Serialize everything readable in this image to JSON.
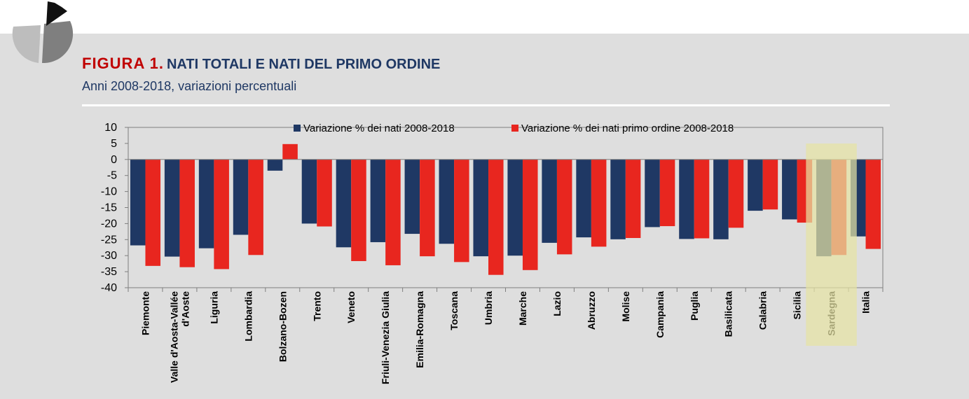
{
  "header": {
    "figure_label": "FIGURA 1.",
    "title": "NATI TOTALI E NATI DEL PRIMO ORDINE",
    "subtitle": "Anni 2008-2018, variazioni percentuali"
  },
  "logo_icon": "pie-chart-icon",
  "colors": {
    "series_total": "#1f3864",
    "series_first": "#e8261f",
    "highlight": "#e6e3a3",
    "title_label": "#c00000",
    "title_text": "#1f3864",
    "panel_bg": "#dedede"
  },
  "chart_data": {
    "type": "bar",
    "categories": [
      "Piemonte",
      "Valle d'Aosta-Vallée\nd'Aoste",
      "Liguria",
      "Lombardia",
      "Bolzano-Bozen",
      "Trento",
      "Veneto",
      "Friuli-Venezia Giulia",
      "Emilia-Romagna",
      "Toscana",
      "Umbria",
      "Marche",
      "Lazio",
      "Abruzzo",
      "Molise",
      "Campania",
      "Puglia",
      "Basilicata",
      "Calabria",
      "Sicilia",
      "Sardegna",
      "Italia"
    ],
    "series": [
      {
        "name": "Variazione % dei nati 2008-2018",
        "values": [
          -26.8,
          -30.3,
          -27.7,
          -23.5,
          -3.5,
          -20.0,
          -27.4,
          -25.8,
          -23.2,
          -26.3,
          -30.2,
          -30.0,
          -26.0,
          -24.3,
          -24.9,
          -21.1,
          -24.8,
          -24.9,
          -16.0,
          -18.7,
          -30.2,
          -24.0
        ]
      },
      {
        "name": "Variazione % dei nati primo ordine 2008-2018",
        "values": [
          -33.2,
          -33.6,
          -34.2,
          -29.8,
          4.8,
          -20.9,
          -31.7,
          -33.0,
          -30.2,
          -32.0,
          -36.0,
          -34.5,
          -29.6,
          -27.2,
          -24.5,
          -20.8,
          -24.6,
          -21.3,
          -15.6,
          -19.7,
          -29.8,
          -27.9
        ]
      }
    ],
    "highlighted_category": "Sardegna",
    "ylim": [
      -40,
      10
    ],
    "yticks": [
      10,
      5,
      0,
      -5,
      -10,
      -15,
      -20,
      -25,
      -30,
      -35,
      -40
    ],
    "legend_position": "top",
    "grid": false
  }
}
